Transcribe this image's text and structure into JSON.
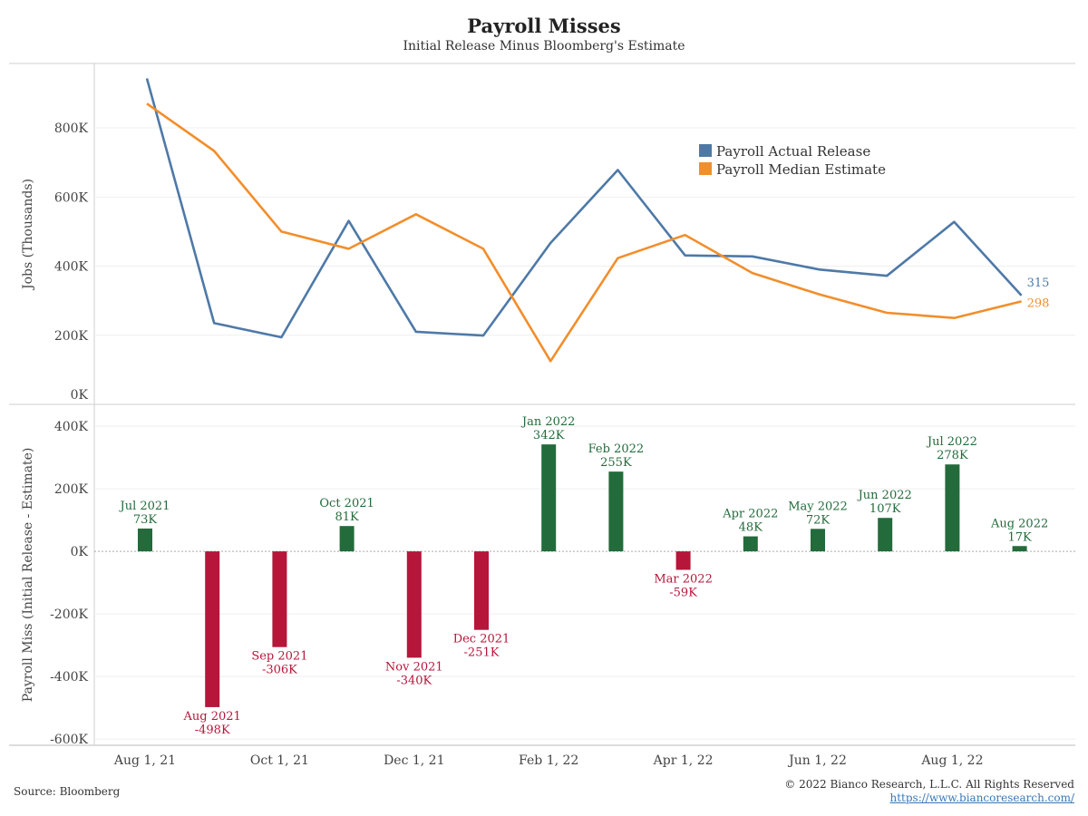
{
  "header": {
    "title": "Payroll Misses",
    "subtitle": "Initial Release Minus Bloomberg's Estimate"
  },
  "footer": {
    "source": "Source: Bloomberg",
    "copyright": "© 2022 Bianco Research, L.L.C. All Rights Reserved",
    "url": "https://www.biancoresearch.com/"
  },
  "colors": {
    "actual": "#4e79a7",
    "estimate": "#f28e2b",
    "positive": "#236b3b",
    "negative": "#b5163a"
  },
  "chart_data": [
    {
      "type": "line",
      "ylabel": "Jobs (Thousands)",
      "ylim": [
        0,
        960
      ],
      "yticks": [
        0,
        200,
        400,
        600,
        800
      ],
      "ytick_labels": [
        "0K",
        "200K",
        "400K",
        "600K",
        "800K"
      ],
      "x": [
        "Aug 2021",
        "Sep 2021",
        "Oct 2021",
        "Nov 2021",
        "Dec 2021",
        "Jan 2022",
        "Feb 2022",
        "Mar 2022",
        "Apr 2022",
        "May 2022",
        "Jun 2022",
        "Jul 2022",
        "Aug 2022",
        "Sep 2022"
      ],
      "series": [
        {
          "name": "Payroll Actual Release",
          "values": [
            943,
            235,
            194,
            531,
            210,
            199,
            467,
            678,
            431,
            428,
            390,
            372,
            528,
            315
          ]
        },
        {
          "name": "Payroll Median Estimate",
          "values": [
            870,
            733,
            500,
            450,
            550,
            450,
            125,
            423,
            490,
            380,
            318,
            265,
            250,
            298
          ]
        }
      ],
      "end_labels": [
        "315",
        "298"
      ],
      "legend": "top-right"
    },
    {
      "type": "bar",
      "ylabel": "Payroll Miss (Initial Release - Estimate)",
      "ylim": [
        -620,
        470
      ],
      "yticks": [
        -600,
        -400,
        -200,
        0,
        200,
        400
      ],
      "ytick_labels": [
        "-600K",
        "-400K",
        "-200K",
        "0K",
        "200K",
        "400K"
      ],
      "categories": [
        "Jul 2021",
        "Aug 2021",
        "Sep 2021",
        "Oct 2021",
        "Nov 2021",
        "Dec 2021",
        "Jan 2022",
        "Feb 2022",
        "Mar 2022",
        "Apr 2022",
        "May 2022",
        "Jun 2022",
        "Jul 2022",
        "Aug 2022"
      ],
      "values": [
        73,
        -498,
        -306,
        81,
        -340,
        -251,
        342,
        255,
        -59,
        48,
        72,
        107,
        278,
        17
      ],
      "value_labels": [
        "73K",
        "-498K",
        "-306K",
        "81K",
        "-340K",
        "-251K",
        "342K",
        "255K",
        "-59K",
        "48K",
        "72K",
        "107K",
        "278K",
        "17K"
      ],
      "x_ticks": [
        "Aug 1, 21",
        "Oct 1, 21",
        "Dec 1, 21",
        "Feb 1, 22",
        "Apr 1, 22",
        "Jun 1, 22",
        "Aug 1, 22"
      ]
    }
  ]
}
